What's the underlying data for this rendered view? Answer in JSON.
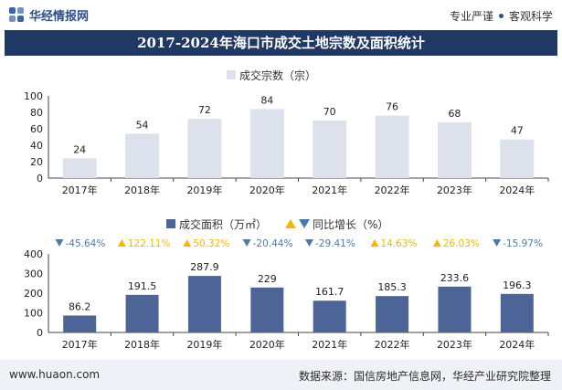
{
  "header": {
    "brand": "华经情报网",
    "slogan_left": "专业严谨",
    "slogan_right": "客观科学"
  },
  "title": "2017-2024年海口市成交土地宗数及面积统计",
  "footer": {
    "site": "www.huaon.com",
    "source": "数据来源：国信房地产信息网，华经产业研究院整理"
  },
  "colors": {
    "title_bg": "#1f3864",
    "count_bar": "#dde1ec",
    "area_bar": "#4c6596",
    "up": "#f5b800",
    "down": "#4c7aa8"
  },
  "chart_data": [
    {
      "type": "bar",
      "title": "成交宗数（宗）",
      "legend": "成交宗数（宗）",
      "categories": [
        "2017年",
        "2018年",
        "2019年",
        "2020年",
        "2021年",
        "2022年",
        "2023年",
        "2024年"
      ],
      "values": [
        24,
        54,
        72,
        84,
        70,
        76,
        68,
        47
      ],
      "ylim": [
        0,
        100
      ],
      "yticks": [
        0,
        20,
        40,
        60,
        80,
        100
      ],
      "xlabel": "",
      "ylabel": ""
    },
    {
      "type": "bar",
      "legend": [
        "成交面积（万㎡）",
        "同比增长（%）"
      ],
      "categories": [
        "2017年",
        "2018年",
        "2019年",
        "2020年",
        "2021年",
        "2022年",
        "2023年",
        "2024年"
      ],
      "series": [
        {
          "name": "成交面积（万㎡）",
          "values": [
            86.2,
            191.5,
            287.9,
            229,
            161.7,
            185.3,
            233.6,
            196.3
          ]
        },
        {
          "name": "同比增长（%）",
          "values": [
            -45.64,
            122.11,
            50.32,
            -20.44,
            -29.41,
            14.63,
            26.03,
            -15.97
          ]
        }
      ],
      "yoy_labels": [
        "-45.64%",
        "122.11%",
        "50.32%",
        "-20.44%",
        "-29.41%",
        "14.63%",
        "26.03%",
        "-15.97%"
      ],
      "ylim": [
        0,
        400
      ],
      "yticks": [
        0,
        100,
        200,
        300,
        400
      ],
      "xlabel": "",
      "ylabel": ""
    }
  ]
}
